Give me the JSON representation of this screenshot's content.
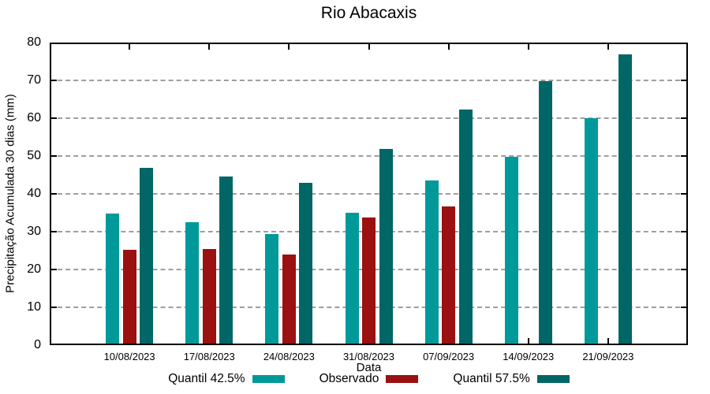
{
  "chart_data": {
    "type": "bar",
    "title": "Rio Abacaxis",
    "xlabel": "Data",
    "ylabel": "Precipitação Acumulada 30 dias (mm)",
    "ylim": [
      0,
      80
    ],
    "yticks": [
      0,
      10,
      20,
      30,
      40,
      50,
      60,
      70,
      80
    ],
    "grid": true,
    "grid_style": "dashed",
    "legend_position": "bottom",
    "categories": [
      "10/08/2023",
      "17/08/2023",
      "24/08/2023",
      "31/08/2023",
      "07/09/2023",
      "14/09/2023",
      "21/09/2023"
    ],
    "series": [
      {
        "name": "Quantil 42.5%",
        "color": "#009999",
        "values": [
          34.8,
          32.6,
          29.4,
          35.0,
          43.5,
          49.8,
          60.0
        ]
      },
      {
        "name": "Observado",
        "color": "#9B1010",
        "values": [
          25.3,
          25.5,
          23.9,
          33.8,
          36.6,
          null,
          null
        ]
      },
      {
        "name": "Quantil 57.5%",
        "color": "#006666",
        "values": [
          46.8,
          44.5,
          43.0,
          51.8,
          62.2,
          69.7,
          76.8
        ]
      }
    ],
    "colors": {
      "axis": "#000000",
      "gridline": "#9e9e9e",
      "text": "#000000",
      "background": "#ffffff"
    }
  }
}
